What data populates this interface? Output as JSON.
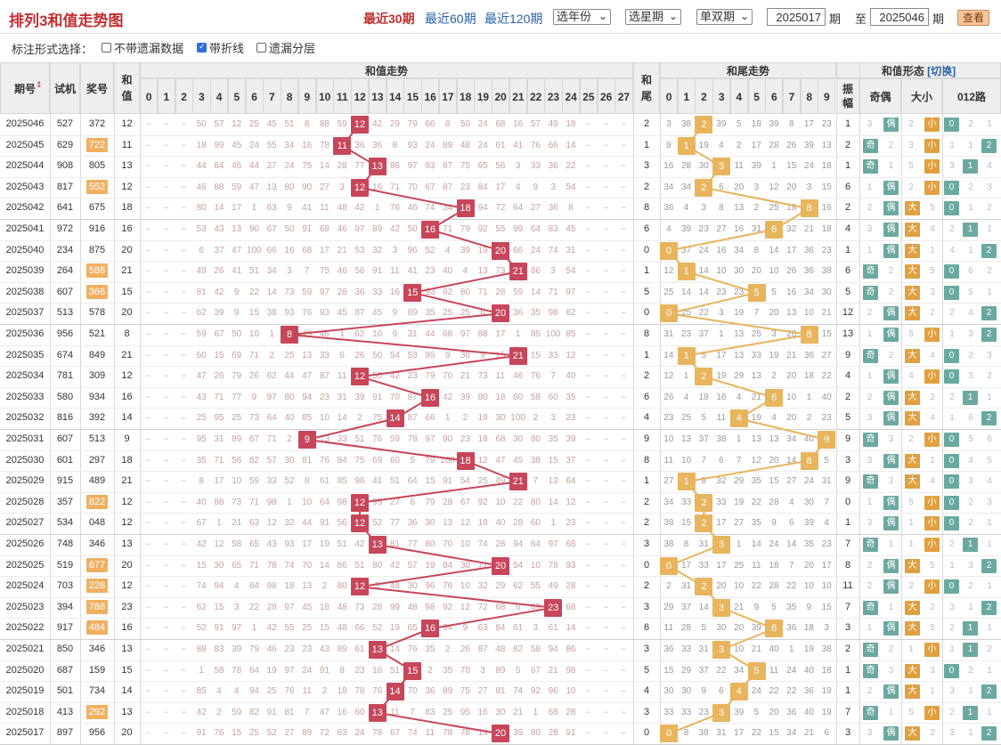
{
  "title": "排列3和值走势图",
  "period_links": [
    "最近30期",
    "最近60期",
    "最近120期"
  ],
  "selects": [
    "选年份",
    "选星期",
    "单双期"
  ],
  "range": {
    "from": "2025017",
    "to": "2025046",
    "qi": "期",
    "zhi": "至"
  },
  "view_button": "查看",
  "options": {
    "label": "标注形式选择：",
    "items": [
      {
        "label": "不带遗漏数据",
        "checked": false
      },
      {
        "label": "带折线",
        "checked": true
      },
      {
        "label": "遗漏分层",
        "checked": false
      }
    ]
  },
  "headers": {
    "issue": "期号",
    "trial": "试机",
    "prize": "奖号",
    "sum": "和值",
    "sum_trend": "和值走势",
    "tail": "和尾",
    "tail_trend": "和尾走势",
    "form": "和值形态",
    "switch": "[切换]",
    "amp": "振幅",
    "oe": "奇偶",
    "bs": "大小",
    "road": "012路"
  },
  "sum_cols": [
    "0",
    "1",
    "2",
    "3",
    "4",
    "5",
    "6",
    "7",
    "8",
    "9",
    "10",
    "11",
    "12",
    "13",
    "14",
    "15",
    "16",
    "17",
    "18",
    "19",
    "20",
    "21",
    "22",
    "23",
    "24",
    "25",
    "26",
    "27"
  ],
  "tail_cols": [
    "0",
    "1",
    "2",
    "3",
    "4",
    "5",
    "6",
    "7",
    "8",
    "9"
  ],
  "labels": {
    "odd": "奇",
    "even": "偶",
    "big": "大",
    "small": "小"
  },
  "rows": [
    {
      "issue": "2025046",
      "trial": "527",
      "prize": "372",
      "hi": false,
      "sum": 12,
      "tail": 2,
      "amp": "1",
      "oe": "偶",
      "bs": "小",
      "road": 0,
      "roadm": [
        "0",
        "2",
        "1"
      ]
    },
    {
      "issue": "2025045",
      "trial": "629",
      "prize": "722",
      "hi": true,
      "sum": 11,
      "tail": 1,
      "amp": "2",
      "oe": "奇",
      "bs": "小",
      "road": 2,
      "roadm": [
        "1",
        "1",
        "2"
      ]
    },
    {
      "issue": "2025044",
      "trial": "908",
      "prize": "805",
      "hi": false,
      "sum": 13,
      "tail": 3,
      "amp": "1",
      "oe": "奇",
      "bs": "小",
      "road": 1,
      "roadm": [
        "3",
        "1",
        "4"
      ]
    },
    {
      "issue": "2025043",
      "trial": "817",
      "prize": "552",
      "hi": true,
      "sum": 12,
      "tail": 2,
      "amp": "6",
      "oe": "偶",
      "bs": "小",
      "road": 0,
      "roadm": [
        "0",
        "2",
        "3"
      ]
    },
    {
      "issue": "2025042",
      "trial": "641",
      "prize": "675",
      "hi": false,
      "sum": 18,
      "tail": 8,
      "amp": "2",
      "oe": "偶",
      "bs": "大",
      "road": 0,
      "roadm": [
        "0",
        "1",
        "2"
      ]
    },
    {
      "issue": "2025041",
      "trial": "972",
      "prize": "916",
      "hi": false,
      "sum": 16,
      "tail": 6,
      "amp": "4",
      "oe": "偶",
      "bs": "大",
      "road": 1,
      "roadm": [
        "2",
        "1",
        "1"
      ]
    },
    {
      "issue": "2025040",
      "trial": "234",
      "prize": "875",
      "hi": false,
      "sum": 20,
      "tail": 0,
      "amp": "1",
      "oe": "偶",
      "bs": "大",
      "road": 2,
      "roadm": [
        "4",
        "1",
        "2"
      ]
    },
    {
      "issue": "2025039",
      "trial": "264",
      "prize": "588",
      "hi": true,
      "sum": 21,
      "tail": 1,
      "amp": "6",
      "oe": "奇",
      "bs": "大",
      "road": 0,
      "roadm": [
        "0",
        "6",
        "2"
      ]
    },
    {
      "issue": "2025038",
      "trial": "607",
      "prize": "366",
      "hi": true,
      "sum": 15,
      "tail": 5,
      "amp": "5",
      "oe": "奇",
      "bs": "大",
      "road": 0,
      "roadm": [
        "0",
        "5",
        "1"
      ]
    },
    {
      "issue": "2025037",
      "trial": "513",
      "prize": "578",
      "hi": false,
      "sum": 20,
      "tail": 0,
      "amp": "12",
      "oe": "偶",
      "bs": "大",
      "road": 2,
      "roadm": [
        "2",
        "4",
        "2"
      ]
    },
    {
      "issue": "2025036",
      "trial": "956",
      "prize": "521",
      "hi": false,
      "sum": 8,
      "tail": 8,
      "amp": "13",
      "oe": "偶",
      "bs": "小",
      "road": 2,
      "roadm": [
        "1",
        "3",
        "2"
      ]
    },
    {
      "issue": "2025035",
      "trial": "674",
      "prize": "849",
      "hi": false,
      "sum": 21,
      "tail": 1,
      "amp": "9",
      "oe": "奇",
      "bs": "大",
      "road": 0,
      "roadm": [
        "0",
        "2",
        "3"
      ]
    },
    {
      "issue": "2025034",
      "trial": "781",
      "prize": "309",
      "hi": false,
      "sum": 12,
      "tail": 2,
      "amp": "4",
      "oe": "偶",
      "bs": "小",
      "road": 0,
      "roadm": [
        "0",
        "3",
        "2"
      ]
    },
    {
      "issue": "2025033",
      "trial": "580",
      "prize": "934",
      "hi": false,
      "sum": 16,
      "tail": 6,
      "amp": "2",
      "oe": "偶",
      "bs": "大",
      "road": 1,
      "roadm": [
        "2",
        "1",
        "1"
      ]
    },
    {
      "issue": "2025032",
      "trial": "816",
      "prize": "392",
      "hi": false,
      "sum": 14,
      "tail": 4,
      "amp": "5",
      "oe": "偶",
      "bs": "大",
      "road": 2,
      "roadm": [
        "1",
        "6",
        "2"
      ]
    },
    {
      "issue": "2025031",
      "trial": "607",
      "prize": "513",
      "hi": false,
      "sum": 9,
      "tail": 9,
      "amp": "9",
      "oe": "奇",
      "bs": "小",
      "road": 0,
      "roadm": [
        "0",
        "5",
        "6"
      ]
    },
    {
      "issue": "2025030",
      "trial": "601",
      "prize": "297",
      "hi": false,
      "sum": 18,
      "tail": 8,
      "amp": "3",
      "oe": "偶",
      "bs": "大",
      "road": 0,
      "roadm": [
        "0",
        "4",
        "5"
      ]
    },
    {
      "issue": "2025029",
      "trial": "915",
      "prize": "489",
      "hi": false,
      "sum": 21,
      "tail": 1,
      "amp": "9",
      "oe": "奇",
      "bs": "大",
      "road": 0,
      "roadm": [
        "0",
        "3",
        "4"
      ]
    },
    {
      "issue": "2025028",
      "trial": "357",
      "prize": "822",
      "hi": true,
      "sum": 12,
      "tail": 2,
      "amp": "0",
      "oe": "偶",
      "bs": "小",
      "road": 0,
      "roadm": [
        "0",
        "2",
        "3"
      ]
    },
    {
      "issue": "2025027",
      "trial": "534",
      "prize": "048",
      "hi": false,
      "sum": 12,
      "tail": 2,
      "amp": "1",
      "oe": "偶",
      "bs": "小",
      "road": 0,
      "roadm": [
        "0",
        "2",
        "1"
      ]
    },
    {
      "issue": "2025026",
      "trial": "748",
      "prize": "346",
      "hi": false,
      "sum": 13,
      "tail": 3,
      "amp": "7",
      "oe": "奇",
      "bs": "小",
      "road": 1,
      "roadm": [
        "2",
        "1",
        "1"
      ]
    },
    {
      "issue": "2025025",
      "trial": "519",
      "prize": "677",
      "hi": true,
      "sum": 20,
      "tail": 0,
      "amp": "8",
      "oe": "偶",
      "bs": "大",
      "road": 2,
      "roadm": [
        "1",
        "3",
        "2"
      ]
    },
    {
      "issue": "2025024",
      "trial": "703",
      "prize": "228",
      "hi": true,
      "sum": 12,
      "tail": 2,
      "amp": "11",
      "oe": "偶",
      "bs": "小",
      "road": 0,
      "roadm": [
        "0",
        "2",
        "1"
      ]
    },
    {
      "issue": "2025023",
      "trial": "394",
      "prize": "788",
      "hi": true,
      "sum": 23,
      "tail": 3,
      "amp": "7",
      "oe": "奇",
      "bs": "大",
      "road": 2,
      "roadm": [
        "3",
        "1",
        "2"
      ]
    },
    {
      "issue": "2025022",
      "trial": "917",
      "prize": "484",
      "hi": true,
      "sum": 16,
      "tail": 6,
      "amp": "3",
      "oe": "偶",
      "bs": "大",
      "road": 1,
      "roadm": [
        "2",
        "1",
        "1"
      ]
    },
    {
      "issue": "2025021",
      "trial": "850",
      "prize": "346",
      "hi": false,
      "sum": 13,
      "tail": 3,
      "amp": "2",
      "oe": "奇",
      "bs": "小",
      "road": 1,
      "roadm": [
        "1",
        "1",
        "2"
      ]
    },
    {
      "issue": "2025020",
      "trial": "687",
      "prize": "159",
      "hi": false,
      "sum": 15,
      "tail": 5,
      "amp": "1",
      "oe": "奇",
      "bs": "大",
      "road": 0,
      "roadm": [
        "0",
        "2",
        "1"
      ]
    },
    {
      "issue": "2025019",
      "trial": "501",
      "prize": "734",
      "hi": false,
      "sum": 14,
      "tail": 4,
      "amp": "1",
      "oe": "偶",
      "bs": "大",
      "road": 2,
      "roadm": [
        "3",
        "1",
        "2"
      ]
    },
    {
      "issue": "2025018",
      "trial": "413",
      "prize": "292",
      "hi": true,
      "sum": 13,
      "tail": 3,
      "amp": "7",
      "oe": "奇",
      "bs": "小",
      "road": 1,
      "roadm": [
        "2",
        "1",
        "1"
      ]
    },
    {
      "issue": "2025017",
      "trial": "897",
      "prize": "956",
      "hi": false,
      "sum": 20,
      "tail": 0,
      "amp": "3",
      "oe": "偶",
      "bs": "大",
      "road": 2,
      "roadm": [
        "3",
        "1",
        "2"
      ]
    }
  ],
  "colors": {
    "sum_mark": "#c7465a",
    "tail_mark": "#e8b45c",
    "odd": "#6aa9a0",
    "even": "#6aa9a0",
    "big": "#e0a040",
    "small": "#e0a040",
    "road": "#6aa9a0",
    "badge": "#efb062",
    "active": "#c03030",
    "link": "#2a62a8"
  }
}
